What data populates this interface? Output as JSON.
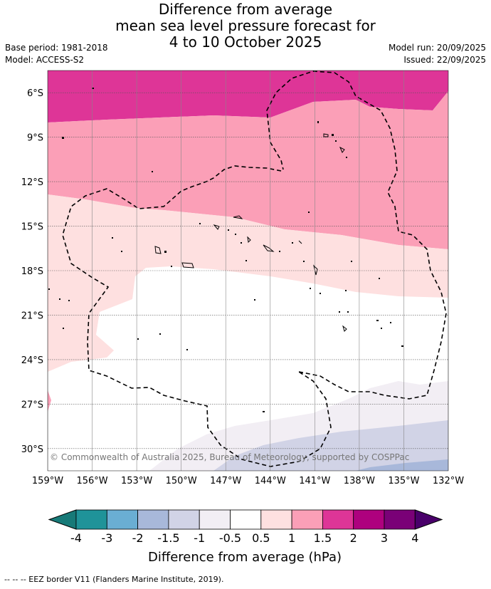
{
  "title": {
    "line1": "Difference from average",
    "line2": "mean sea level pressure forecast for",
    "line3": "4 to 10 October 2025"
  },
  "meta": {
    "base_period": "Base period: 1981-2018",
    "model": "Model: ACCESS-S2",
    "model_run": "Model run: 20/09/2025",
    "issued": "Issued: 22/09/2025"
  },
  "map": {
    "lon_range": [
      -159,
      -132
    ],
    "lat_range": [
      -4.5,
      -31.5
    ],
    "lon_ticks": [
      "159°W",
      "156°W",
      "153°W",
      "150°W",
      "147°W",
      "144°W",
      "141°W",
      "138°W",
      "135°W",
      "132°W"
    ],
    "lat_ticks": [
      "6°S",
      "9°S",
      "12°S",
      "15°S",
      "18°S",
      "21°S",
      "24°S",
      "27°S",
      "30°S"
    ],
    "copyright": "© Commonwealth of Australia 2025, Bureau of Meteorology, supported by COSPPac"
  },
  "legend": {
    "title": "Difference from average (hPa)",
    "labels": [
      "-4",
      "-3",
      "-2",
      "-1.5",
      "-1",
      "-0.5",
      "0.5",
      "1",
      "1.5",
      "2",
      "3",
      "4"
    ],
    "colors": [
      "#177a78",
      "#1f9399",
      "#6aaed3",
      "#a8b8da",
      "#d1d3e6",
      "#f2eef4",
      "#ffffff",
      "#fee0e0",
      "#fb9fb7",
      "#de3597",
      "#ae017e",
      "#7a0177",
      "#49006a"
    ]
  },
  "footer": {
    "eez_legend": "-- -- -- EEZ border V11 (Flanders Marine Institute, 2019)."
  }
}
